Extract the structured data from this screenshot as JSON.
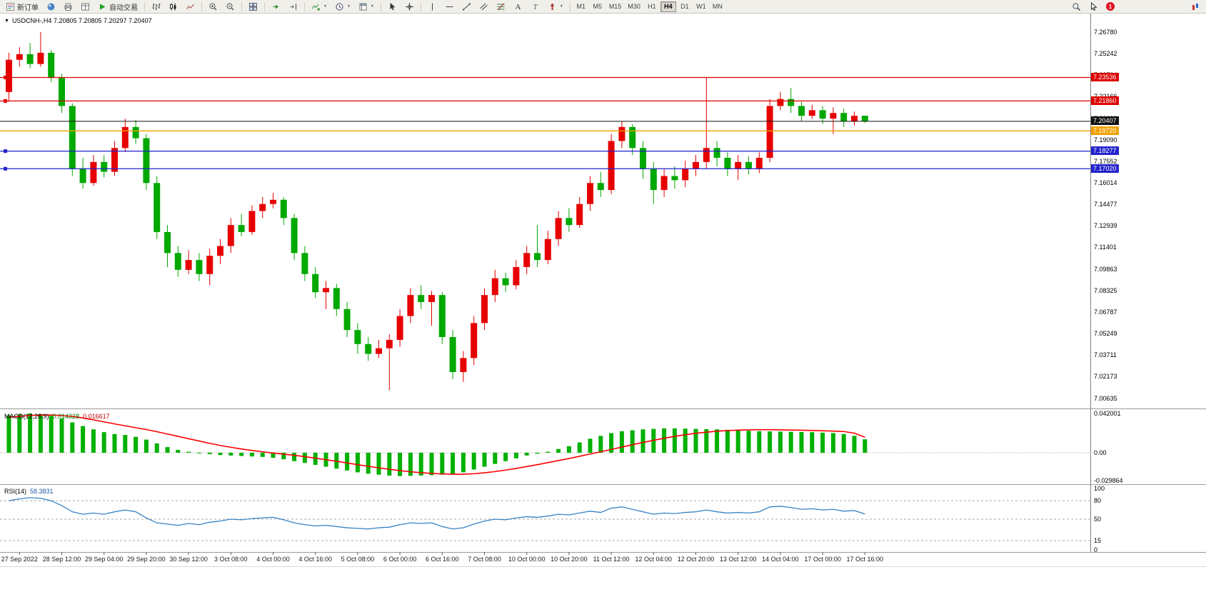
{
  "toolbar": {
    "new_order_label": "新订单",
    "autotrading_label": "自动交易",
    "timeframes": [
      "M1",
      "M5",
      "M15",
      "M30",
      "H1",
      "H4",
      "D1",
      "W1",
      "MN"
    ],
    "active_timeframe": "H4",
    "notification_count": "1",
    "icons": {
      "new-order-icon": "order ticket sheet",
      "chart-window-icon": "blue sphere",
      "print-icon": "printer",
      "data-window-icon": "data table",
      "autotrading-play-icon": "green play triangle",
      "bar-chart-icon": "ohlc bars",
      "candlestick-icon": "two candles",
      "line-chart-icon": "zigzag line",
      "zoom-in-icon": "magnifier plus",
      "zoom-out-icon": "magnifier minus",
      "tile-windows-icon": "2x2 grid",
      "auto-scroll-icon": "green right arrow",
      "chart-shift-icon": "arrow to line",
      "indicators-icon": "green zigzag plus",
      "periods-icon": "clock",
      "templates-icon": "template sheet",
      "cursor-icon": "pointer arrow",
      "crosshair-icon": "crosshair",
      "vertical-line-icon": "vertical line",
      "horizontal-line-icon": "horizontal line",
      "trendline-icon": "diagonal line",
      "channel-icon": "parallel lines",
      "fibonacci-icon": "fibo retracement lines",
      "text-icon": "letter A",
      "text-label-icon": "letter T",
      "arrows-icon": "red arrow",
      "search-icon": "magnifier",
      "pointer-icon": "white cursor",
      "status-icon": "mini chart"
    }
  },
  "chart": {
    "title_line": "USDCNH-,H4 7.20805 7.20805 7.20297 7.20407",
    "symbol": "USDCNH-",
    "period": "H4",
    "open": "7.20805",
    "high": "7.20805",
    "low": "7.20297",
    "close": "7.20407"
  },
  "chart_data": {
    "type": "candlestick",
    "symbol": "USDCNH-",
    "period": "H4",
    "price_range": [
      6.999,
      7.281
    ],
    "price_axis_labels": [
      "7.26780",
      "7.25242",
      "7.23704",
      "7.22166",
      "7.20628",
      "7.19090",
      "7.17552",
      "7.16014",
      "7.14477",
      "7.12939",
      "7.11401",
      "7.09863",
      "7.08325",
      "7.06787",
      "7.05249",
      "7.03711",
      "7.02173",
      "7.00635"
    ],
    "time_labels": [
      "27 Sep 2022",
      "28 Sep 12:00",
      "29 Sep 04:00",
      "29 Sep 20:00",
      "30 Sep 12:00",
      "3 Oct 08:00",
      "4 Oct 00:00",
      "4 Oct 16:00",
      "5 Oct 08:00",
      "6 Oct 00:00",
      "6 Oct 16:00",
      "7 Oct 08:00",
      "10 Oct 00:00",
      "10 Oct 20:00",
      "11 Oct 12:00",
      "12 Oct 04:00",
      "12 Oct 20:00",
      "13 Oct 12:00",
      "14 Oct 04:00",
      "17 Oct 00:00",
      "17 Oct 16:00"
    ],
    "colors": {
      "up": "#e60000",
      "down": "#00a800",
      "macd_hist": "#00b000",
      "macd_signal": "#ff0000",
      "rsi": "#3882c4",
      "level_red": "#dd0000",
      "level_orange": "#f0a000",
      "level_blue": "#2222cc",
      "current_price": "#111111"
    },
    "levels": [
      {
        "label": "7.23536",
        "value": 7.23536,
        "color": "#dd0000",
        "handle": true
      },
      {
        "label": "7.21860",
        "value": 7.2186,
        "color": "#dd0000",
        "handle": true
      },
      {
        "label": "7.20407",
        "value": 7.20407,
        "color": "#111111",
        "current": true
      },
      {
        "label": "7.19720",
        "value": 7.1972,
        "color": "#f0a000"
      },
      {
        "label": "7.18277",
        "value": 7.18277,
        "color": "#2222cc",
        "handle": true
      },
      {
        "label": "7.17020",
        "value": 7.1702,
        "color": "#2222cc",
        "handle": true
      }
    ],
    "candles": [
      [
        7.225,
        7.253,
        7.218,
        7.248
      ],
      [
        7.248,
        7.257,
        7.243,
        7.252
      ],
      [
        7.252,
        7.26,
        7.242,
        7.245
      ],
      [
        7.245,
        7.2678,
        7.243,
        7.253
      ],
      [
        7.253,
        7.255,
        7.232,
        7.235
      ],
      [
        7.235,
        7.238,
        7.21,
        7.215
      ],
      [
        7.215,
        7.217,
        7.165,
        7.17
      ],
      [
        7.17,
        7.178,
        7.156,
        7.16
      ],
      [
        7.16,
        7.18,
        7.158,
        7.175
      ],
      [
        7.175,
        7.18,
        7.164,
        7.168
      ],
      [
        7.168,
        7.19,
        7.165,
        7.185
      ],
      [
        7.185,
        7.206,
        7.182,
        7.2
      ],
      [
        7.2,
        7.205,
        7.188,
        7.192
      ],
      [
        7.192,
        7.195,
        7.155,
        7.16
      ],
      [
        7.16,
        7.165,
        7.12,
        7.125
      ],
      [
        7.125,
        7.13,
        7.1,
        7.11
      ],
      [
        7.11,
        7.115,
        7.093,
        7.098
      ],
      [
        7.098,
        7.112,
        7.095,
        7.105
      ],
      [
        7.105,
        7.11,
        7.09,
        7.095
      ],
      [
        7.095,
        7.113,
        7.087,
        7.108
      ],
      [
        7.108,
        7.12,
        7.102,
        7.115
      ],
      [
        7.115,
        7.135,
        7.11,
        7.13
      ],
      [
        7.13,
        7.138,
        7.122,
        7.125
      ],
      [
        7.125,
        7.144,
        7.123,
        7.14
      ],
      [
        7.14,
        7.15,
        7.135,
        7.145
      ],
      [
        7.145,
        7.153,
        7.142,
        7.148
      ],
      [
        7.148,
        7.15,
        7.13,
        7.135
      ],
      [
        7.135,
        7.138,
        7.105,
        7.11
      ],
      [
        7.11,
        7.115,
        7.09,
        7.095
      ],
      [
        7.095,
        7.1,
        7.078,
        7.082
      ],
      [
        7.082,
        7.09,
        7.07,
        7.085
      ],
      [
        7.085,
        7.088,
        7.065,
        7.07
      ],
      [
        7.07,
        7.075,
        7.05,
        7.055
      ],
      [
        7.055,
        7.06,
        7.038,
        7.045
      ],
      [
        7.045,
        7.05,
        7.033,
        7.038
      ],
      [
        7.038,
        7.048,
        7.035,
        7.042
      ],
      [
        7.042,
        7.052,
        7.012,
        7.048
      ],
      [
        7.048,
        7.07,
        7.043,
        7.065
      ],
      [
        7.065,
        7.085,
        7.06,
        7.08
      ],
      [
        7.08,
        7.087,
        7.07,
        7.075
      ],
      [
        7.075,
        7.083,
        7.058,
        7.08
      ],
      [
        7.08,
        7.082,
        7.045,
        7.05
      ],
      [
        7.05,
        7.055,
        7.02,
        7.025
      ],
      [
        7.025,
        7.04,
        7.018,
        7.035
      ],
      [
        7.035,
        7.065,
        7.03,
        7.06
      ],
      [
        7.06,
        7.085,
        7.055,
        7.08
      ],
      [
        7.08,
        7.098,
        7.075,
        7.092
      ],
      [
        7.092,
        7.096,
        7.082,
        7.087
      ],
      [
        7.087,
        7.105,
        7.084,
        7.1
      ],
      [
        7.1,
        7.115,
        7.095,
        7.11
      ],
      [
        7.11,
        7.13,
        7.1,
        7.105
      ],
      [
        7.105,
        7.126,
        7.102,
        7.12
      ],
      [
        7.12,
        7.14,
        7.115,
        7.135
      ],
      [
        7.135,
        7.142,
        7.125,
        7.13
      ],
      [
        7.13,
        7.15,
        7.128,
        7.145
      ],
      [
        7.145,
        7.165,
        7.14,
        7.16
      ],
      [
        7.16,
        7.168,
        7.15,
        7.155
      ],
      [
        7.155,
        7.195,
        7.152,
        7.19
      ],
      [
        7.19,
        7.204,
        7.185,
        7.2
      ],
      [
        7.2,
        7.202,
        7.18,
        7.185
      ],
      [
        7.185,
        7.19,
        7.163,
        7.17
      ],
      [
        7.17,
        7.175,
        7.145,
        7.155
      ],
      [
        7.155,
        7.17,
        7.15,
        7.165
      ],
      [
        7.165,
        7.172,
        7.156,
        7.162
      ],
      [
        7.162,
        7.176,
        7.157,
        7.17
      ],
      [
        7.17,
        7.18,
        7.165,
        7.175
      ],
      [
        7.175,
        7.2353,
        7.17,
        7.185
      ],
      [
        7.185,
        7.19,
        7.172,
        7.178
      ],
      [
        7.178,
        7.182,
        7.165,
        7.17
      ],
      [
        7.17,
        7.18,
        7.162,
        7.175
      ],
      [
        7.175,
        7.179,
        7.166,
        7.17
      ],
      [
        7.17,
        7.182,
        7.167,
        7.178
      ],
      [
        7.178,
        7.22,
        7.175,
        7.215
      ],
      [
        7.215,
        7.225,
        7.212,
        7.22
      ],
      [
        7.22,
        7.228,
        7.21,
        7.215
      ],
      [
        7.215,
        7.218,
        7.204,
        7.208
      ],
      [
        7.208,
        7.216,
        7.206,
        7.212
      ],
      [
        7.212,
        7.215,
        7.202,
        7.206
      ],
      [
        7.206,
        7.214,
        7.195,
        7.21
      ],
      [
        7.21,
        7.213,
        7.2,
        7.204
      ],
      [
        7.204,
        7.211,
        7.201,
        7.208
      ],
      [
        7.20805,
        7.20805,
        7.20297,
        7.20407
      ]
    ],
    "macd": {
      "label": "MACD(12,26,9)",
      "main_value": "0.014328",
      "signal_value": "0.016617",
      "axis": [
        "0.042001",
        "0.00",
        "-0.029864"
      ],
      "range": [
        -0.029864,
        0.042001
      ],
      "hist": [
        0.04,
        0.041,
        0.042,
        0.0415,
        0.0395,
        0.0365,
        0.0325,
        0.0285,
        0.025,
        0.022,
        0.02,
        0.019,
        0.017,
        0.014,
        0.01,
        0.006,
        0.003,
        0.001,
        -0.0005,
        -0.0015,
        -0.0025,
        -0.003,
        -0.0035,
        -0.004,
        -0.0045,
        -0.0055,
        -0.007,
        -0.009,
        -0.011,
        -0.013,
        -0.015,
        -0.017,
        -0.019,
        -0.021,
        -0.0225,
        -0.0235,
        -0.0245,
        -0.025,
        -0.0248,
        -0.0245,
        -0.024,
        -0.0235,
        -0.023,
        -0.021,
        -0.018,
        -0.015,
        -0.012,
        -0.009,
        -0.006,
        -0.003,
        -0.001,
        0.001,
        0.004,
        0.007,
        0.011,
        0.015,
        0.018,
        0.021,
        0.023,
        0.024,
        0.025,
        0.0255,
        0.026,
        0.026,
        0.0258,
        0.0255,
        0.0252,
        0.025,
        0.0245,
        0.024,
        0.0235,
        0.023,
        0.0228,
        0.0226,
        0.0224,
        0.0222,
        0.022,
        0.0215,
        0.021,
        0.02,
        0.018,
        0.014328
      ],
      "signal": [
        0.038,
        0.039,
        0.0398,
        0.0403,
        0.0403,
        0.0398,
        0.0388,
        0.0372,
        0.0352,
        0.033,
        0.0308,
        0.0288,
        0.0268,
        0.0248,
        0.0225,
        0.02,
        0.0175,
        0.015,
        0.0125,
        0.01,
        0.0078,
        0.0058,
        0.004,
        0.0024,
        0.001,
        -0.0003,
        -0.0015,
        -0.0028,
        -0.0042,
        -0.0058,
        -0.0075,
        -0.0092,
        -0.011,
        -0.0128,
        -0.0145,
        -0.0162,
        -0.0178,
        -0.0192,
        -0.0204,
        -0.0214,
        -0.0222,
        -0.0227,
        -0.023,
        -0.023,
        -0.0225,
        -0.0215,
        -0.0202,
        -0.0186,
        -0.0168,
        -0.0148,
        -0.0128,
        -0.0106,
        -0.0084,
        -0.0062,
        -0.0038,
        -0.0014,
        0.001,
        0.0035,
        0.006,
        0.0085,
        0.011,
        0.0133,
        0.0155,
        0.0175,
        0.0193,
        0.0208,
        0.022,
        0.023,
        0.0237,
        0.0242,
        0.0245,
        0.0246,
        0.0246,
        0.0245,
        0.0243,
        0.0241,
        0.0238,
        0.0235,
        0.0231,
        0.0227,
        0.021,
        0.016617
      ]
    },
    "rsi": {
      "label": "RSI(14)",
      "value": "58.3831",
      "axis": [
        "100",
        "80",
        "50",
        "15",
        "0"
      ],
      "levels": [
        80,
        50,
        15
      ],
      "values": [
        80,
        83,
        85,
        84,
        80,
        72,
        62,
        58,
        60,
        58,
        62,
        65,
        62,
        52,
        44,
        42,
        40,
        43,
        41,
        45,
        47,
        50,
        49,
        51,
        52,
        53,
        49,
        44,
        41,
        39,
        40,
        38,
        36,
        35,
        34,
        36,
        37,
        41,
        44,
        43,
        44,
        38,
        34,
        36,
        42,
        47,
        50,
        49,
        52,
        54,
        53,
        55,
        58,
        57,
        60,
        63,
        61,
        68,
        70,
        66,
        62,
        58,
        60,
        59,
        61,
        62,
        65,
        62,
        60,
        61,
        60,
        62,
        70,
        71,
        69,
        66,
        67,
        65,
        66,
        63,
        64,
        58.38
      ]
    }
  }
}
